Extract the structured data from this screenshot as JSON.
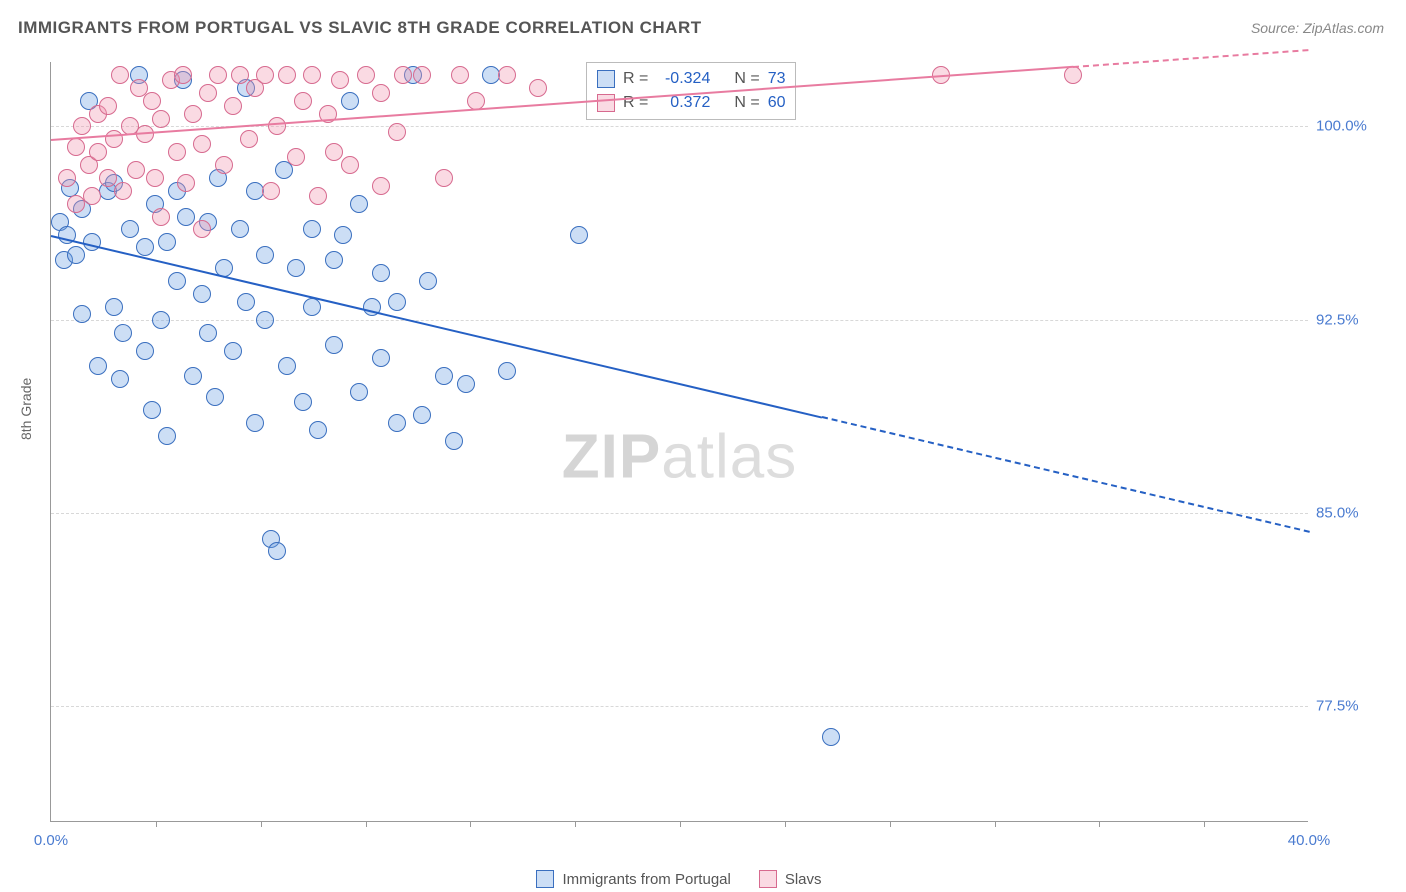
{
  "title": "IMMIGRANTS FROM PORTUGAL VS SLAVIC 8TH GRADE CORRELATION CHART",
  "source": "Source: ZipAtlas.com",
  "y_axis_label": "8th Grade",
  "watermark_prefix": "ZIP",
  "watermark_suffix": "atlas",
  "chart": {
    "type": "scatter",
    "background_color": "#ffffff",
    "grid_color": "#d8d8d8",
    "axis_color": "#999999",
    "x_min": 0.0,
    "x_max": 40.0,
    "y_min": 73.0,
    "y_max": 102.5,
    "x_tick_labels": [
      {
        "pos": 0.0,
        "label": "0.0%"
      },
      {
        "pos": 40.0,
        "label": "40.0%"
      }
    ],
    "x_ticks_minor": [
      3.33,
      6.67,
      10.0,
      13.33,
      16.67,
      20.0,
      23.33,
      26.67,
      30.0,
      33.33,
      36.67
    ],
    "y_ticks": [
      {
        "pos": 77.5,
        "label": "77.5%"
      },
      {
        "pos": 85.0,
        "label": "85.0%"
      },
      {
        "pos": 92.5,
        "label": "92.5%"
      },
      {
        "pos": 100.0,
        "label": "100.0%"
      }
    ],
    "marker_radius": 9,
    "series": [
      {
        "name": "Immigrants from Portugal",
        "color_fill": "rgba(110,160,225,0.35)",
        "color_stroke": "#3a6fbf",
        "trend_color": "#2560c4",
        "R": "-0.324",
        "N": "73",
        "trend": {
          "y_at_x0": 95.8,
          "y_at_xmax": 84.3,
          "solid_x_end": 24.5
        },
        "points": [
          {
            "x": 0.3,
            "y": 96.3
          },
          {
            "x": 0.5,
            "y": 95.8
          },
          {
            "x": 0.6,
            "y": 97.6
          },
          {
            "x": 0.4,
            "y": 94.8
          },
          {
            "x": 0.8,
            "y": 95.0
          },
          {
            "x": 1.0,
            "y": 96.8
          },
          {
            "x": 1.2,
            "y": 101.0
          },
          {
            "x": 1.3,
            "y": 95.5
          },
          {
            "x": 1.5,
            "y": 90.7
          },
          {
            "x": 1.0,
            "y": 92.7
          },
          {
            "x": 1.8,
            "y": 97.5
          },
          {
            "x": 2.0,
            "y": 93.0
          },
          {
            "x": 2.0,
            "y": 97.8
          },
          {
            "x": 2.2,
            "y": 90.2
          },
          {
            "x": 2.3,
            "y": 92.0
          },
          {
            "x": 2.5,
            "y": 96.0
          },
          {
            "x": 2.8,
            "y": 102.0
          },
          {
            "x": 3.0,
            "y": 95.3
          },
          {
            "x": 3.0,
            "y": 91.3
          },
          {
            "x": 3.2,
            "y": 89.0
          },
          {
            "x": 3.3,
            "y": 97.0
          },
          {
            "x": 3.5,
            "y": 92.5
          },
          {
            "x": 3.7,
            "y": 88.0
          },
          {
            "x": 3.7,
            "y": 95.5
          },
          {
            "x": 4.0,
            "y": 94.0
          },
          {
            "x": 4.0,
            "y": 97.5
          },
          {
            "x": 4.2,
            "y": 101.8
          },
          {
            "x": 4.3,
            "y": 96.5
          },
          {
            "x": 4.5,
            "y": 90.3
          },
          {
            "x": 4.8,
            "y": 93.5
          },
          {
            "x": 5.0,
            "y": 96.3
          },
          {
            "x": 5.0,
            "y": 92.0
          },
          {
            "x": 5.2,
            "y": 89.5
          },
          {
            "x": 5.3,
            "y": 98.0
          },
          {
            "x": 5.5,
            "y": 94.5
          },
          {
            "x": 5.8,
            "y": 91.3
          },
          {
            "x": 6.0,
            "y": 96.0
          },
          {
            "x": 6.2,
            "y": 93.2
          },
          {
            "x": 6.2,
            "y": 101.5
          },
          {
            "x": 6.5,
            "y": 88.5
          },
          {
            "x": 6.5,
            "y": 97.5
          },
          {
            "x": 6.8,
            "y": 92.5
          },
          {
            "x": 6.8,
            "y": 95.0
          },
          {
            "x": 7.0,
            "y": 84.0
          },
          {
            "x": 7.2,
            "y": 83.5
          },
          {
            "x": 7.4,
            "y": 98.3
          },
          {
            "x": 7.5,
            "y": 90.7
          },
          {
            "x": 7.8,
            "y": 94.5
          },
          {
            "x": 8.0,
            "y": 89.3
          },
          {
            "x": 8.3,
            "y": 93.0
          },
          {
            "x": 8.3,
            "y": 96.0
          },
          {
            "x": 8.5,
            "y": 88.2
          },
          {
            "x": 9.0,
            "y": 94.8
          },
          {
            "x": 9.0,
            "y": 91.5
          },
          {
            "x": 9.3,
            "y": 95.8
          },
          {
            "x": 9.5,
            "y": 101.0
          },
          {
            "x": 9.8,
            "y": 97.0
          },
          {
            "x": 9.8,
            "y": 89.7
          },
          {
            "x": 10.2,
            "y": 93.0
          },
          {
            "x": 10.5,
            "y": 91.0
          },
          {
            "x": 10.5,
            "y": 94.3
          },
          {
            "x": 11.0,
            "y": 93.2
          },
          {
            "x": 11.0,
            "y": 88.5
          },
          {
            "x": 11.5,
            "y": 102.0
          },
          {
            "x": 11.8,
            "y": 88.8
          },
          {
            "x": 12.0,
            "y": 94.0
          },
          {
            "x": 12.5,
            "y": 90.3
          },
          {
            "x": 12.8,
            "y": 87.8
          },
          {
            "x": 13.2,
            "y": 90.0
          },
          {
            "x": 14.0,
            "y": 102.0
          },
          {
            "x": 14.5,
            "y": 90.5
          },
          {
            "x": 16.8,
            "y": 95.8
          },
          {
            "x": 24.8,
            "y": 76.3
          }
        ]
      },
      {
        "name": "Slavs",
        "color_fill": "rgba(240,150,175,0.35)",
        "color_stroke": "#d76a8f",
        "trend_color": "#e87ba0",
        "R": "0.372",
        "N": "60",
        "trend": {
          "y_at_x0": 99.5,
          "y_at_xmax": 103.0,
          "solid_x_end": 32.5
        },
        "points": [
          {
            "x": 0.5,
            "y": 98.0
          },
          {
            "x": 0.8,
            "y": 99.2
          },
          {
            "x": 0.8,
            "y": 97.0
          },
          {
            "x": 1.0,
            "y": 100.0
          },
          {
            "x": 1.2,
            "y": 98.5
          },
          {
            "x": 1.3,
            "y": 97.3
          },
          {
            "x": 1.5,
            "y": 100.5
          },
          {
            "x": 1.5,
            "y": 99.0
          },
          {
            "x": 1.8,
            "y": 98.0
          },
          {
            "x": 1.8,
            "y": 100.8
          },
          {
            "x": 2.0,
            "y": 99.5
          },
          {
            "x": 2.2,
            "y": 102.0
          },
          {
            "x": 2.3,
            "y": 97.5
          },
          {
            "x": 2.5,
            "y": 100.0
          },
          {
            "x": 2.7,
            "y": 98.3
          },
          {
            "x": 2.8,
            "y": 101.5
          },
          {
            "x": 3.0,
            "y": 99.7
          },
          {
            "x": 3.2,
            "y": 101.0
          },
          {
            "x": 3.3,
            "y": 98.0
          },
          {
            "x": 3.5,
            "y": 100.3
          },
          {
            "x": 3.5,
            "y": 96.5
          },
          {
            "x": 3.8,
            "y": 101.8
          },
          {
            "x": 4.0,
            "y": 99.0
          },
          {
            "x": 4.2,
            "y": 102.0
          },
          {
            "x": 4.3,
            "y": 97.8
          },
          {
            "x": 4.5,
            "y": 100.5
          },
          {
            "x": 4.8,
            "y": 99.3
          },
          {
            "x": 4.8,
            "y": 96.0
          },
          {
            "x": 5.0,
            "y": 101.3
          },
          {
            "x": 5.3,
            "y": 102.0
          },
          {
            "x": 5.5,
            "y": 98.5
          },
          {
            "x": 5.8,
            "y": 100.8
          },
          {
            "x": 6.0,
            "y": 102.0
          },
          {
            "x": 6.3,
            "y": 99.5
          },
          {
            "x": 6.5,
            "y": 101.5
          },
          {
            "x": 6.8,
            "y": 102.0
          },
          {
            "x": 7.0,
            "y": 97.5
          },
          {
            "x": 7.2,
            "y": 100.0
          },
          {
            "x": 7.5,
            "y": 102.0
          },
          {
            "x": 7.8,
            "y": 98.8
          },
          {
            "x": 8.0,
            "y": 101.0
          },
          {
            "x": 8.3,
            "y": 102.0
          },
          {
            "x": 8.5,
            "y": 97.3
          },
          {
            "x": 8.8,
            "y": 100.5
          },
          {
            "x": 9.0,
            "y": 99.0
          },
          {
            "x": 9.2,
            "y": 101.8
          },
          {
            "x": 9.5,
            "y": 98.5
          },
          {
            "x": 10.0,
            "y": 102.0
          },
          {
            "x": 10.5,
            "y": 97.7
          },
          {
            "x": 10.5,
            "y": 101.3
          },
          {
            "x": 11.0,
            "y": 99.8
          },
          {
            "x": 11.2,
            "y": 102.0
          },
          {
            "x": 11.8,
            "y": 102.0
          },
          {
            "x": 12.5,
            "y": 98.0
          },
          {
            "x": 13.0,
            "y": 102.0
          },
          {
            "x": 13.5,
            "y": 101.0
          },
          {
            "x": 14.5,
            "y": 102.0
          },
          {
            "x": 15.5,
            "y": 101.5
          },
          {
            "x": 28.3,
            "y": 102.0
          },
          {
            "x": 32.5,
            "y": 102.0
          }
        ]
      }
    ]
  },
  "stats_box": {
    "R_label": "R =",
    "N_label": "N ="
  },
  "legend": {
    "item1": "Immigrants from Portugal",
    "item2": "Slavs"
  }
}
